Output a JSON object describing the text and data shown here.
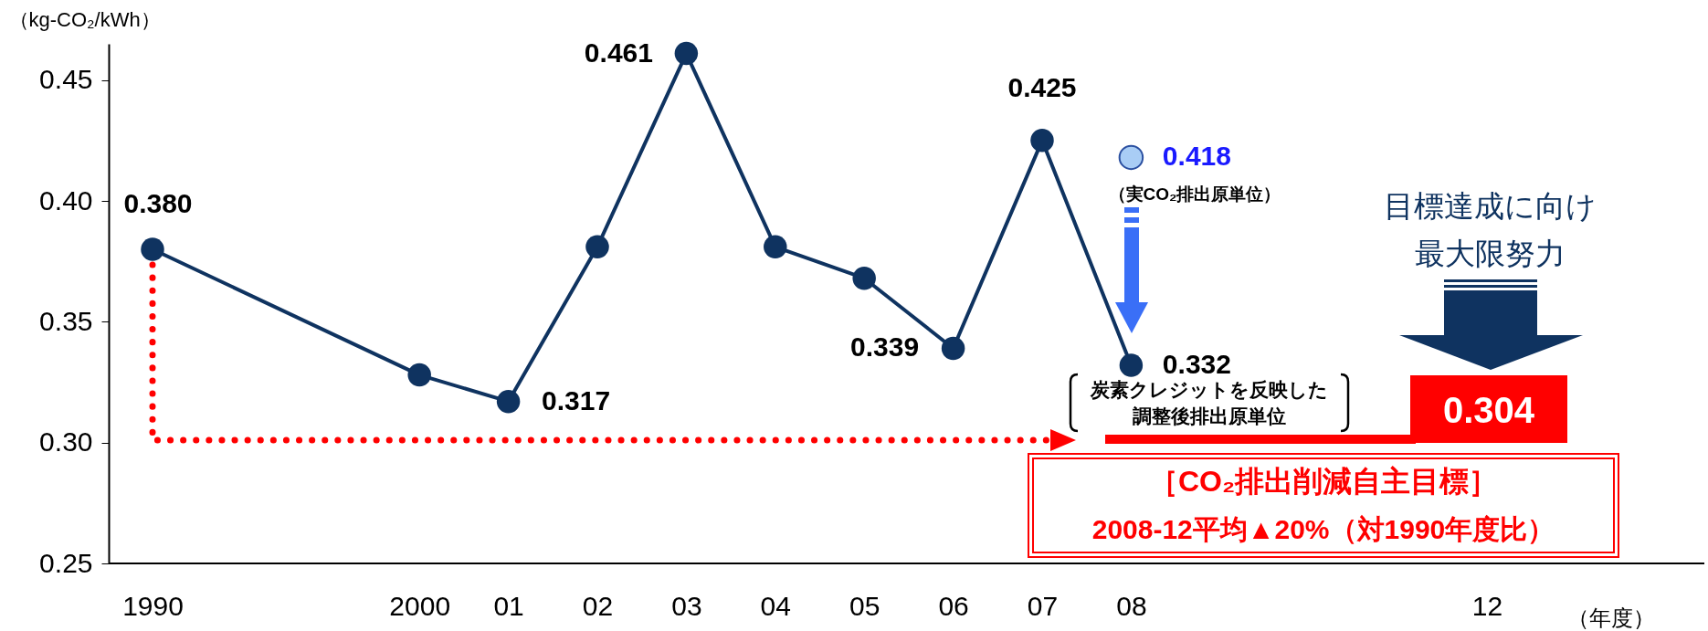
{
  "chart_data": {
    "type": "line",
    "categories": [
      "1990",
      null,
      null,
      "2000",
      "01",
      "02",
      "03",
      "04",
      "05",
      "06",
      "07",
      "08",
      null,
      null,
      null,
      "12"
    ],
    "xlabel": "（年度）",
    "ylabel": "（kg-CO₂/kWh）",
    "series": [
      {
        "type": "line",
        "color": "#0f3360",
        "marker": "circle",
        "values": [
          0.38,
          null,
          null,
          0.328,
          0.317,
          0.381,
          0.461,
          0.381,
          0.368,
          0.339,
          0.425,
          0.332,
          null,
          null,
          null,
          null
        ],
        "value_labels": [
          "0.380",
          null,
          null,
          null,
          "0.317",
          null,
          "0.461",
          null,
          null,
          "0.339",
          "0.425",
          "0.332",
          null,
          null,
          null,
          null
        ]
      },
      {
        "type": "scatter",
        "color": "#a9cdf5",
        "marker": "circle",
        "values": [
          null,
          null,
          null,
          null,
          null,
          null,
          null,
          null,
          null,
          null,
          null,
          0.418,
          null,
          null,
          null,
          null
        ],
        "value_labels": [
          null,
          null,
          null,
          null,
          null,
          null,
          null,
          null,
          null,
          null,
          null,
          "0.418",
          null,
          null,
          null,
          null
        ]
      }
    ],
    "ylim": [
      0.25,
      0.465
    ],
    "yticks": [
      0.25,
      {
        "value": 0.3,
        "label": "0.30"
      },
      0.35,
      {
        "value": 0.4,
        "label": "0.40"
      },
      0.45
    ],
    "grid": false,
    "annotations": [
      "（実CO₂排出原単位）",
      "炭素クレジットを反映した",
      "調整後排出原単位",
      "目標達成に向け",
      "最大限努力",
      "0.304",
      "［CO₂排出削減自主目標］",
      "2008-12平均▲20%（対1990年度比）"
    ]
  }
}
